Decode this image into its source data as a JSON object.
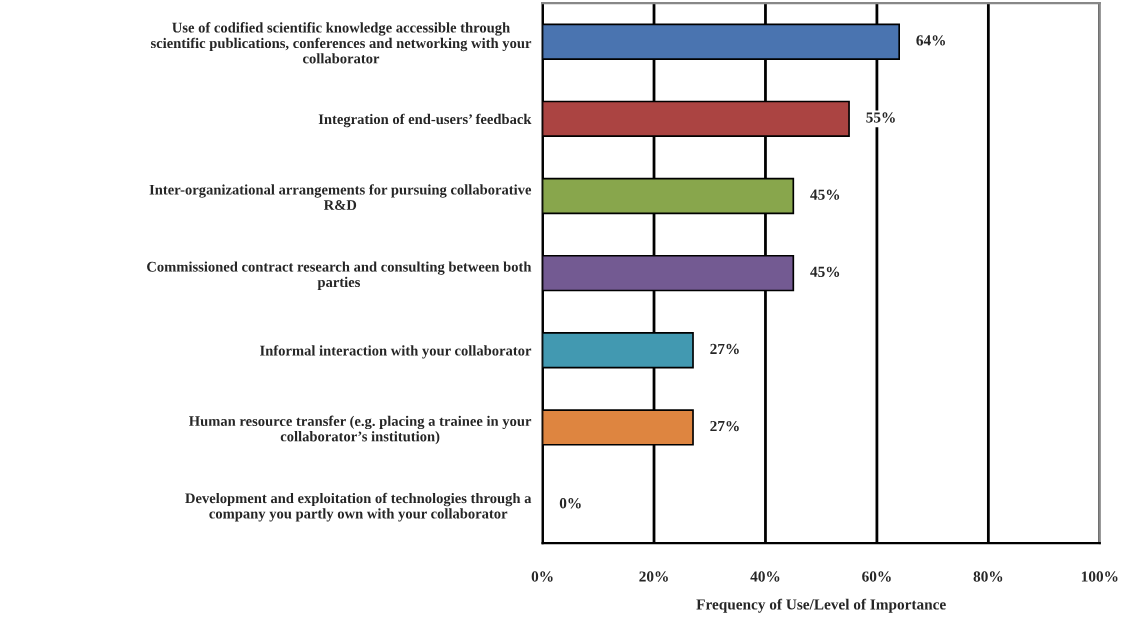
{
  "chart_data": {
    "type": "bar",
    "orientation": "horizontal",
    "xlabel": "Frequency of Use/Level of Importance",
    "categories": [
      "Use of codified scientific knowledge accessible through\nscientific publications, conferences and networking with your\ncollaborator",
      "Integration of end-users’ feedback",
      "Inter-organizational arrangements for pursuing collaborative\nR&D",
      "Commissioned contract research and consulting between both\nparties",
      "Informal interaction with your collaborator",
      "Human resource transfer (e.g. placing a trainee in your\ncollaborator’s institution)",
      "Development and exploitation of technologies through a\ncompany you partly own with your collaborator"
    ],
    "values": [
      64,
      55,
      45,
      45,
      27,
      27,
      0
    ],
    "value_labels": [
      "64%",
      "55%",
      "45%",
      "45%",
      "27%",
      "27%",
      "0%"
    ],
    "colors": [
      "#4a74b0",
      "#ab4442",
      "#88a64c",
      "#735a92",
      "#4299b1",
      "#de8540",
      "#4a74b0"
    ],
    "xlim": [
      0,
      100
    ],
    "xticks": [
      {
        "value": 0,
        "label": "0%"
      },
      {
        "value": 20,
        "label": "20%"
      },
      {
        "value": 40,
        "label": "40%"
      },
      {
        "value": 60,
        "label": "60%"
      },
      {
        "value": 80,
        "label": "80%"
      },
      {
        "value": 100,
        "label": "100%"
      }
    ],
    "grid": "x"
  }
}
